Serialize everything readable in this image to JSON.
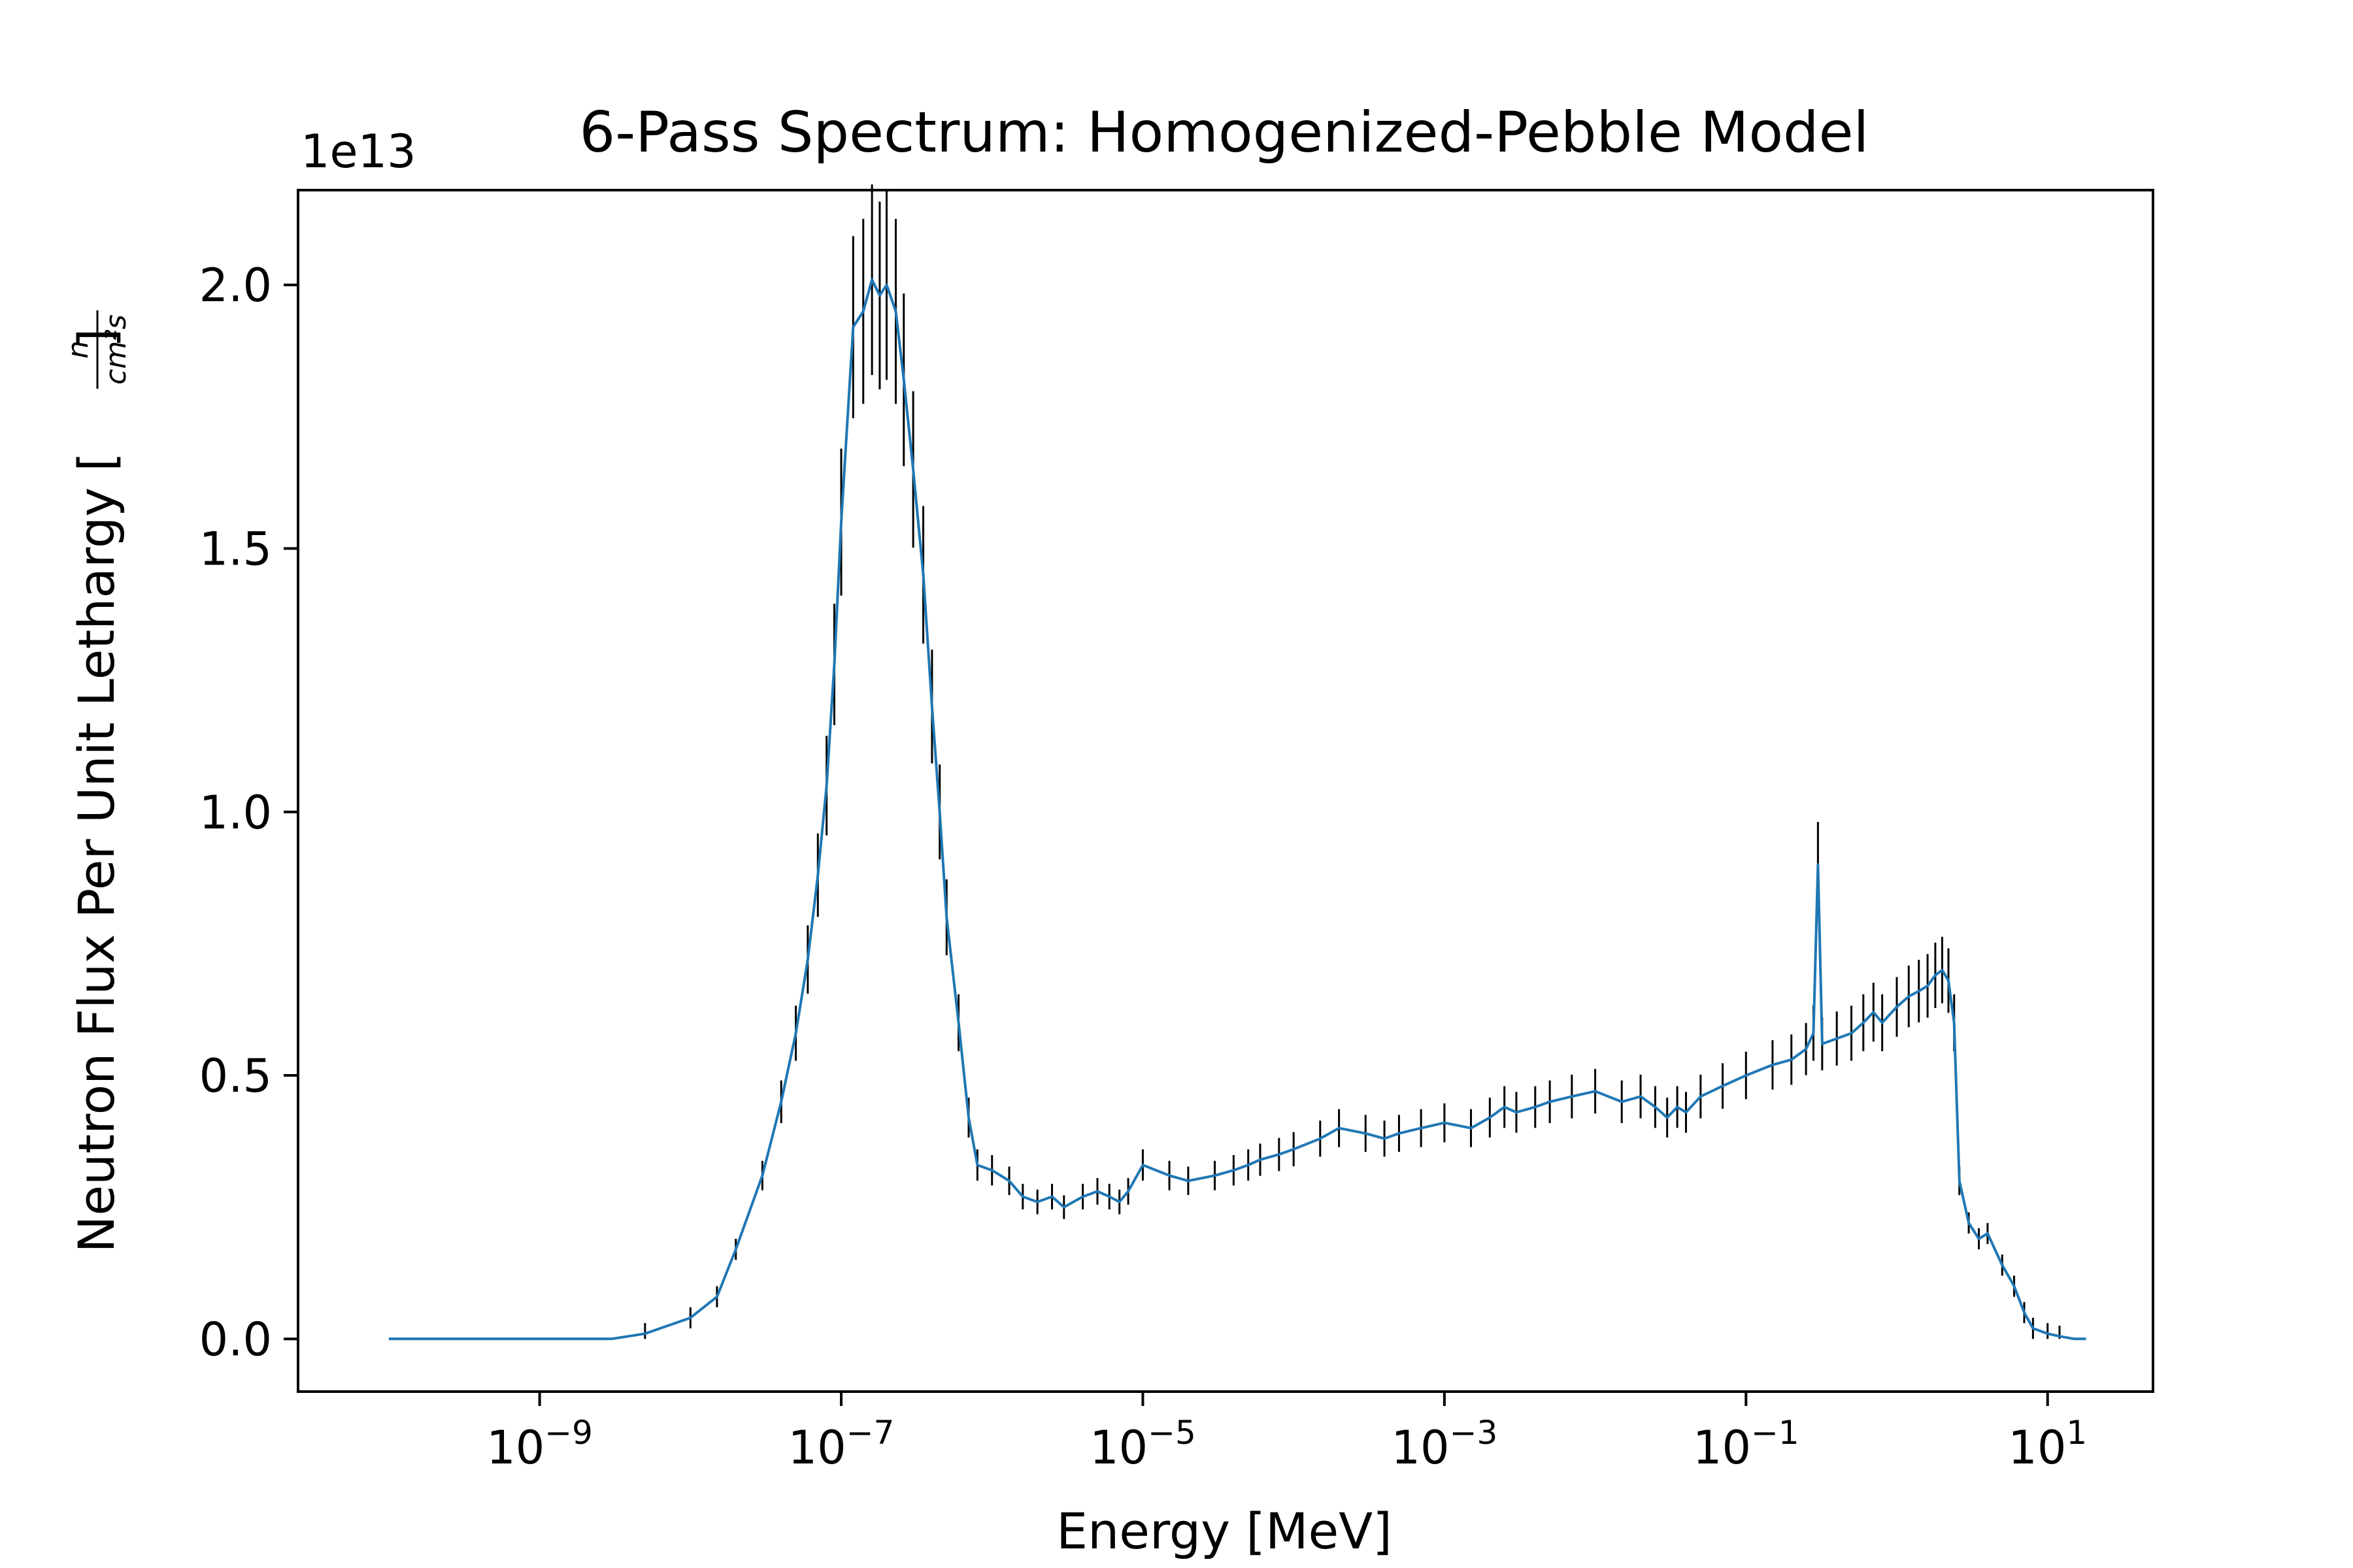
{
  "chart_data": {
    "type": "line",
    "title": "6-Pass Spectrum: Homogenized-Pebble Model",
    "xlabel": "Energy [MeV]",
    "ylabel": {
      "prefix": "Neutron Flux Per Unit Lethargy [",
      "numerator": "n",
      "denominator": "cm²s",
      "suffix": "]"
    },
    "y_offset_label": "1e13",
    "x_scale": "log",
    "xlim": [
      2.5e-11,
      50
    ],
    "ylim": [
      -1000000000000.0,
      21800000000000.0
    ],
    "x_ticks": [
      {
        "value": 1e-09,
        "base": "10",
        "exp": "−9"
      },
      {
        "value": 1e-07,
        "base": "10",
        "exp": "−7"
      },
      {
        "value": 1e-05,
        "base": "10",
        "exp": "−5"
      },
      {
        "value": 0.001,
        "base": "10",
        "exp": "−3"
      },
      {
        "value": 0.1,
        "base": "10",
        "exp": "−1"
      },
      {
        "value": 10,
        "base": "10",
        "exp": "1"
      }
    ],
    "y_ticks": [
      {
        "value": 0.0,
        "label": "0.0"
      },
      {
        "value": 5000000000000.0,
        "label": "0.5"
      },
      {
        "value": 10000000000000.0,
        "label": "1.0"
      },
      {
        "value": 15000000000000.0,
        "label": "1.5"
      },
      {
        "value": 20000000000000.0,
        "label": "2.0"
      }
    ],
    "grid": false,
    "legend": "none",
    "colors": {
      "line": "#1f77b4",
      "error_bars": "#000000"
    },
    "error_bars": true,
    "series": [
      {
        "x": [
          1e-10,
          3e-09,
          5e-09,
          1e-08,
          1.5e-08,
          2e-08,
          3e-08,
          4e-08,
          5e-08,
          6e-08,
          7e-08,
          8e-08,
          9e-08,
          1e-07,
          1.2e-07,
          1.4e-07,
          1.6e-07,
          1.8e-07,
          2e-07,
          2.3e-07,
          2.6e-07,
          3e-07,
          3.5e-07,
          4e-07,
          4.5e-07,
          5e-07,
          6e-07,
          7e-07,
          8e-07,
          1e-06,
          1.3e-06,
          1.6e-06,
          2e-06,
          2.5e-06,
          3e-06,
          4e-06,
          5e-06,
          6e-06,
          7e-06,
          8e-06,
          1e-05,
          1.5e-05,
          2e-05,
          3e-05,
          4e-05,
          5e-05,
          6e-05,
          8e-05,
          0.0001,
          0.00015,
          0.0002,
          0.0003,
          0.0004,
          0.0005,
          0.0007,
          0.001,
          0.0015,
          0.002,
          0.0025,
          0.003,
          0.004,
          0.005,
          0.007,
          0.01,
          0.015,
          0.02,
          0.025,
          0.03,
          0.035,
          0.04,
          0.05,
          0.07,
          0.1,
          0.15,
          0.2,
          0.25,
          0.28,
          0.3,
          0.32,
          0.4,
          0.5,
          0.6,
          0.7,
          0.8,
          1,
          1.2,
          1.4,
          1.6,
          1.8,
          2,
          2.2,
          2.4,
          2.6,
          3,
          3.5,
          4,
          5,
          6,
          7,
          8,
          10,
          12,
          15,
          18
        ],
        "y": [
          0.0,
          0.0,
          100000000000.0,
          400000000000.0,
          800000000000.0,
          1700000000000.0,
          3100000000000.0,
          4500000000000.0,
          5800000000000.0,
          7200000000000.0,
          8800000000000.0,
          10500000000000.0,
          12800000000000.0,
          15500000000000.0,
          19200000000000.0,
          19500000000000.0,
          20100000000000.0,
          19800000000000.0,
          20000000000000.0,
          19500000000000.0,
          18200000000000.0,
          16500000000000.0,
          14500000000000.0,
          12000000000000.0,
          10000000000000.0,
          8000000000000.0,
          6000000000000.0,
          4200000000000.0,
          3300000000000.0,
          3200000000000.0,
          3000000000000.0,
          2700000000000.0,
          2600000000000.0,
          2700000000000.0,
          2500000000000.0,
          2700000000000.0,
          2800000000000.0,
          2700000000000.0,
          2600000000000.0,
          2800000000000.0,
          3300000000000.0,
          3100000000000.0,
          3000000000000.0,
          3100000000000.0,
          3200000000000.0,
          3300000000000.0,
          3400000000000.0,
          3500000000000.0,
          3600000000000.0,
          3800000000000.0,
          4000000000000.0,
          3900000000000.0,
          3800000000000.0,
          3900000000000.0,
          4000000000000.0,
          4100000000000.0,
          4000000000000.0,
          4200000000000.0,
          4400000000000.0,
          4300000000000.0,
          4400000000000.0,
          4500000000000.0,
          4600000000000.0,
          4700000000000.0,
          4500000000000.0,
          4600000000000.0,
          4400000000000.0,
          4200000000000.0,
          4400000000000.0,
          4300000000000.0,
          4600000000000.0,
          4800000000000.0,
          5000000000000.0,
          5200000000000.0,
          5300000000000.0,
          5500000000000.0,
          5800000000000.0,
          9000000000000.0,
          5600000000000.0,
          5700000000000.0,
          5800000000000.0,
          6000000000000.0,
          6200000000000.0,
          6000000000000.0,
          6300000000000.0,
          6500000000000.0,
          6600000000000.0,
          6700000000000.0,
          6900000000000.0,
          7000000000000.0,
          6800000000000.0,
          6000000000000.0,
          3000000000000.0,
          2200000000000.0,
          1900000000000.0,
          2000000000000.0,
          1400000000000.0,
          1000000000000.0,
          500000000000.0,
          200000000000.0,
          100000000000.0,
          50000000000.0,
          0.0,
          0.0
        ]
      }
    ]
  }
}
